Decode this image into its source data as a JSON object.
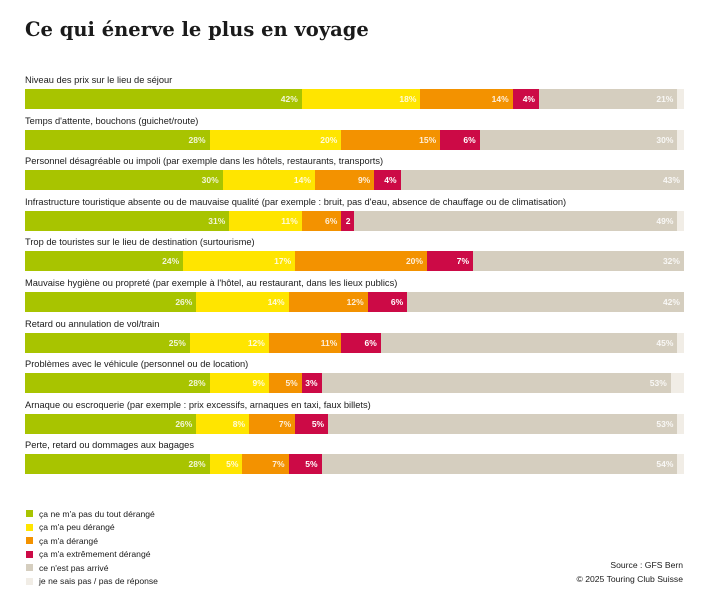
{
  "title": "Ce qui énerve le plus en voyage",
  "chart_data": {
    "type": "bar",
    "orientation": "horizontal",
    "stacked": true,
    "title": "Ce qui énerve le plus en voyage",
    "xlabel": "",
    "ylabel": "",
    "xlim": [
      0,
      100
    ],
    "unit": "%",
    "legend_position": "bottom-left",
    "categories": [
      "Niveau des prix sur le lieu de séjour",
      "Temps d'attente, bouchons (guichet/route)",
      "Personnel désagréable ou impoli (par exemple dans les hôtels, restaurants, transports)",
      "Infrastructure touristique absente ou de mauvaise qualité (par exemple : bruit, pas d'eau, absence de chauffage ou de climatisation)",
      "Trop de touristes sur le lieu de destination (surtourisme)",
      "Mauvaise hygiène ou propreté (par exemple à l'hôtel, au restaurant, dans les lieux publics)",
      "Retard ou annulation de vol/train",
      "Problèmes avec le véhicule (personnel ou de location)",
      "Arnaque ou escroquerie (par exemple : prix excessifs, arnaques en taxi, faux billets)",
      "Perte, retard ou dommages aux bagages"
    ],
    "series": [
      {
        "name": "ça ne m'a pas du tout dérangé",
        "key": "green",
        "color": "#a8c400",
        "values": [
          42,
          28,
          30,
          31,
          24,
          26,
          25,
          28,
          26,
          28
        ],
        "labels": [
          "42%",
          "28%",
          "30%",
          "31%",
          "24%",
          "26%",
          "25%",
          "28%",
          "26%",
          "28%"
        ]
      },
      {
        "name": "ça m'a peu dérangé",
        "key": "yellow",
        "color": "#ffe500",
        "values": [
          18,
          20,
          14,
          11,
          17,
          14,
          12,
          9,
          8,
          5
        ],
        "labels": [
          "18%",
          "20%",
          "14%",
          "11%",
          "17%",
          "14%",
          "12%",
          "9%",
          "8%",
          "5%"
        ]
      },
      {
        "name": "ça m'a dérangé",
        "key": "orange",
        "color": "#f39200",
        "values": [
          14,
          15,
          9,
          6,
          20,
          12,
          11,
          5,
          7,
          7
        ],
        "labels": [
          "14%",
          "15%",
          "9%",
          "6%",
          "20%",
          "12%",
          "11%",
          "5%",
          "7%",
          "7%"
        ]
      },
      {
        "name": "ça m'a extrêmement dérangé",
        "key": "red",
        "color": "#cc0a46",
        "values": [
          4,
          6,
          4,
          2,
          7,
          6,
          6,
          3,
          5,
          5
        ],
        "labels": [
          "4%",
          "6%",
          "4%",
          "2",
          "7%",
          "6%",
          "6%",
          "3%",
          "5%",
          "5%"
        ]
      },
      {
        "name": "ce n'est pas arrivé",
        "key": "beige",
        "color": "#d5cebf",
        "values": [
          21,
          30,
          43,
          49,
          32,
          42,
          45,
          53,
          53,
          54
        ],
        "labels": [
          "21%",
          "30%",
          "43%",
          "49%",
          "32%",
          "42%",
          "45%",
          "53%",
          "53%",
          "54%"
        ]
      },
      {
        "name": "je ne sais pas / pas de réponse",
        "key": "light",
        "color": "#f1ede6",
        "values": [
          1,
          1,
          0,
          1,
          0,
          0,
          1,
          2,
          1,
          1
        ],
        "labels": [
          "",
          "",
          "",
          "",
          "",
          "",
          "",
          "",
          "",
          ""
        ]
      }
    ]
  },
  "legend": [
    {
      "label": "ça ne m'a pas du tout dérangé",
      "color": "#a8c400"
    },
    {
      "label": "ça m'a peu dérangé",
      "color": "#ffe500"
    },
    {
      "label": "ça m'a dérangé",
      "color": "#f39200"
    },
    {
      "label": "ça m'a extrêmement dérangé",
      "color": "#cc0a46"
    },
    {
      "label": "ce n'est pas arrivé",
      "color": "#d5cebf"
    },
    {
      "label": "je ne sais pas / pas de réponse",
      "color": "#f1ede6"
    }
  ],
  "footer": {
    "source": "Source : GFS Bern",
    "copyright": "© 2025 Touring Club Suisse"
  }
}
